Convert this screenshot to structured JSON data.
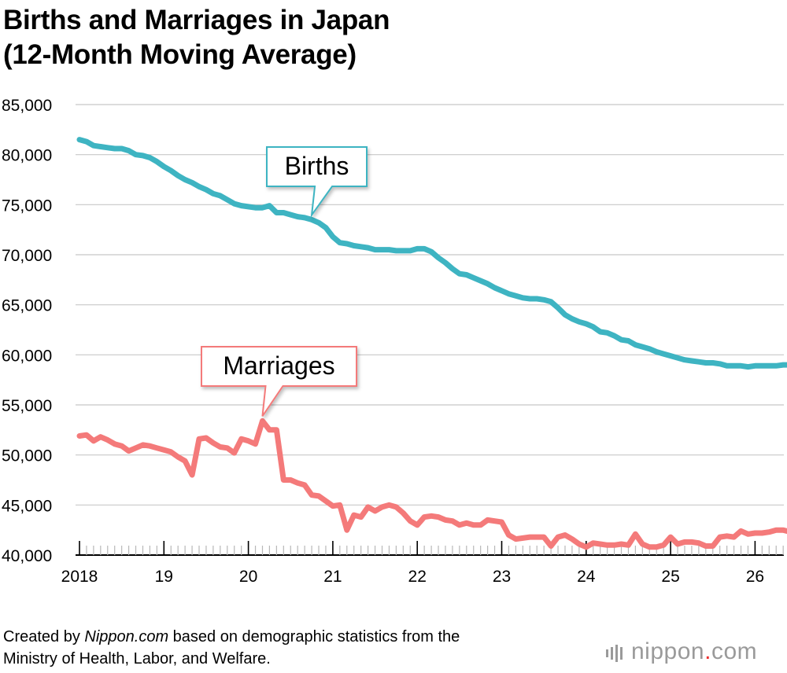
{
  "title": {
    "line1": "Births and Marriages in Japan",
    "line2": "(12-Month Moving Average)"
  },
  "footer": {
    "prefix": "Created by ",
    "source": "Nippon.com",
    "suffix": " based on demographic statistics from the",
    "line2": "Ministry of Health, Labor, and Welfare."
  },
  "logo": {
    "name": "nippon",
    "dot": ".",
    "tld": "com"
  },
  "chart_data": {
    "type": "line",
    "title": "Births and Marriages in Japan (12-Month Moving Average)",
    "ylim": [
      40000,
      85000
    ],
    "y_ticks": [
      40000,
      45000,
      50000,
      55000,
      60000,
      65000,
      70000,
      75000,
      80000,
      85000
    ],
    "y_tick_labels": [
      "40,000",
      "45,000",
      "50,000",
      "55,000",
      "60,000",
      "65,000",
      "70,000",
      "75,000",
      "80,000",
      "85,000"
    ],
    "x_tick_labels": [
      "2018",
      "19",
      "20",
      "21",
      "22",
      "23",
      "24",
      "25",
      "26"
    ],
    "x_start": "2018-01",
    "grid": true,
    "series": [
      {
        "name": "Births",
        "color": "#3eb4c2",
        "values": [
          81500,
          81300,
          80900,
          80800,
          80700,
          80600,
          80600,
          80400,
          80000,
          79900,
          79700,
          79300,
          78800,
          78400,
          77900,
          77500,
          77200,
          76800,
          76500,
          76100,
          75900,
          75500,
          75100,
          74900,
          74800,
          74700,
          74700,
          74900,
          74200,
          74200,
          74000,
          73800,
          73700,
          73500,
          73200,
          72700,
          71800,
          71200,
          71100,
          70900,
          70800,
          70700,
          70500,
          70500,
          70500,
          70400,
          70400,
          70400,
          70600,
          70600,
          70300,
          69700,
          69200,
          68600,
          68100,
          68000,
          67700,
          67400,
          67100,
          66700,
          66400,
          66100,
          65900,
          65700,
          65600,
          65600,
          65500,
          65300,
          64700,
          64000,
          63600,
          63300,
          63100,
          62800,
          62300,
          62200,
          61900,
          61500,
          61400,
          61000,
          60800,
          60600,
          60300,
          60100,
          59900,
          59700,
          59500,
          59400,
          59300,
          59200,
          59200,
          59100,
          58900,
          58900,
          58900,
          58800,
          58900,
          58900,
          58900,
          58900,
          59000,
          59000,
          59100
        ]
      },
      {
        "name": "Marriages",
        "color": "#f47a7a",
        "values": [
          51900,
          52000,
          51400,
          51800,
          51500,
          51100,
          50900,
          50400,
          50700,
          51000,
          50900,
          50700,
          50500,
          50300,
          49800,
          49400,
          48000,
          51600,
          51700,
          51200,
          50800,
          50700,
          50200,
          51600,
          51400,
          51100,
          53400,
          52500,
          52500,
          47500,
          47500,
          47200,
          47000,
          46000,
          45900,
          45400,
          44900,
          45000,
          42500,
          44000,
          43800,
          44800,
          44400,
          44800,
          45000,
          44800,
          44200,
          43400,
          43000,
          43800,
          43900,
          43800,
          43500,
          43400,
          43000,
          43200,
          43000,
          43000,
          43500,
          43400,
          43300,
          42000,
          41600,
          41700,
          41800,
          41800,
          41800,
          40900,
          41800,
          42000,
          41600,
          41100,
          40800,
          41200,
          41100,
          41000,
          41000,
          41100,
          41000,
          42100,
          41100,
          40800,
          40800,
          41000,
          41800,
          41100,
          41300,
          41300,
          41200,
          40900,
          40900,
          41800,
          41900,
          41800,
          42400,
          42100,
          42200,
          42200,
          42300,
          42500,
          42500,
          42300,
          42200
        ]
      }
    ],
    "callouts": [
      {
        "label": "Births",
        "series": "Births"
      },
      {
        "label": "Marriages",
        "series": "Marriages"
      }
    ]
  }
}
